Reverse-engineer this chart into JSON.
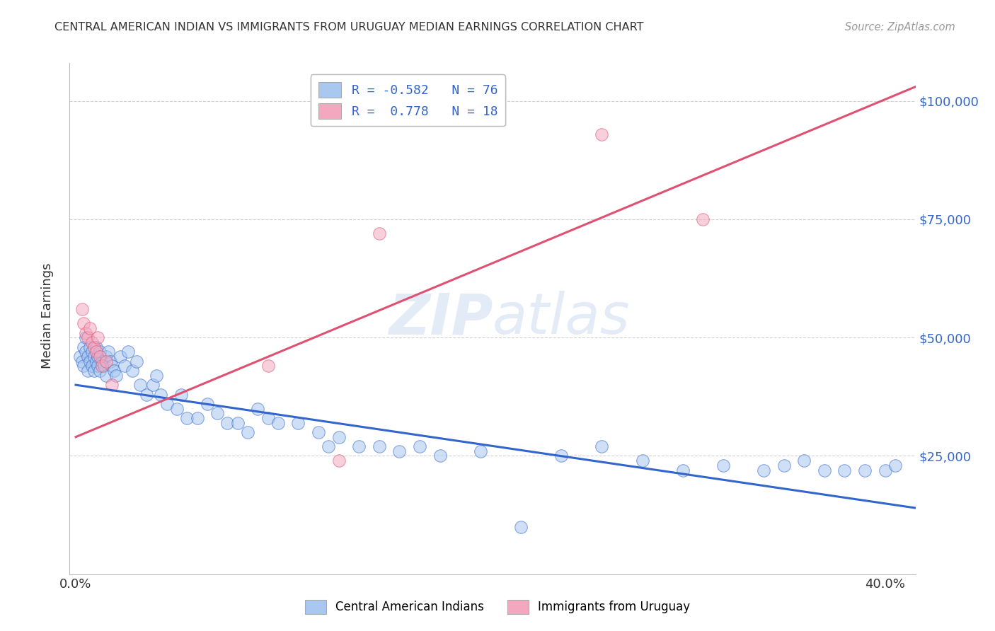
{
  "title": "CENTRAL AMERICAN INDIAN VS IMMIGRANTS FROM URUGUAY MEDIAN EARNINGS CORRELATION CHART",
  "source": "Source: ZipAtlas.com",
  "ylabel": "Median Earnings",
  "legend_label_blue": "Central American Indians",
  "legend_label_pink": "Immigrants from Uruguay",
  "legend_R_blue": "R = -0.582",
  "legend_N_blue": "N = 76",
  "legend_R_pink": "R =  0.778",
  "legend_N_pink": "N = 18",
  "yticks": [
    0,
    25000,
    50000,
    75000,
    100000
  ],
  "ytick_labels": [
    "",
    "$25,000",
    "$50,000",
    "$75,000",
    "$100,000"
  ],
  "xlim": [
    -0.003,
    0.415
  ],
  "ylim": [
    0,
    108000
  ],
  "blue_color": "#A8C8F0",
  "pink_color": "#F4A8C0",
  "blue_line_color": "#3366CC",
  "pink_line_color": "#E05070",
  "legend_text_color": "#3366CC",
  "watermark_color": "#c8d8f0",
  "blue_scatter_x": [
    0.002,
    0.003,
    0.004,
    0.004,
    0.005,
    0.005,
    0.006,
    0.006,
    0.007,
    0.007,
    0.008,
    0.008,
    0.009,
    0.009,
    0.01,
    0.01,
    0.011,
    0.011,
    0.012,
    0.012,
    0.013,
    0.014,
    0.015,
    0.015,
    0.016,
    0.017,
    0.018,
    0.019,
    0.02,
    0.022,
    0.024,
    0.026,
    0.028,
    0.03,
    0.032,
    0.035,
    0.038,
    0.04,
    0.042,
    0.045,
    0.05,
    0.052,
    0.055,
    0.06,
    0.065,
    0.07,
    0.075,
    0.08,
    0.085,
    0.09,
    0.095,
    0.1,
    0.11,
    0.12,
    0.125,
    0.13,
    0.14,
    0.15,
    0.16,
    0.17,
    0.18,
    0.2,
    0.22,
    0.24,
    0.26,
    0.28,
    0.3,
    0.32,
    0.34,
    0.35,
    0.36,
    0.37,
    0.38,
    0.39,
    0.4,
    0.405
  ],
  "blue_scatter_y": [
    46000,
    45000,
    48000,
    44000,
    47000,
    50000,
    46000,
    43000,
    48000,
    45000,
    47000,
    44000,
    46000,
    43000,
    48000,
    45000,
    46000,
    44000,
    47000,
    43000,
    45000,
    44000,
    46000,
    42000,
    47000,
    45000,
    44000,
    43000,
    42000,
    46000,
    44000,
    47000,
    43000,
    45000,
    40000,
    38000,
    40000,
    42000,
    38000,
    36000,
    35000,
    38000,
    33000,
    33000,
    36000,
    34000,
    32000,
    32000,
    30000,
    35000,
    33000,
    32000,
    32000,
    30000,
    27000,
    29000,
    27000,
    27000,
    26000,
    27000,
    25000,
    26000,
    10000,
    25000,
    27000,
    24000,
    22000,
    23000,
    22000,
    23000,
    24000,
    22000,
    22000,
    22000,
    22000,
    23000
  ],
  "pink_scatter_x": [
    0.003,
    0.004,
    0.005,
    0.006,
    0.007,
    0.008,
    0.009,
    0.01,
    0.011,
    0.012,
    0.013,
    0.015,
    0.018,
    0.095,
    0.13,
    0.15,
    0.26,
    0.31
  ],
  "pink_scatter_y": [
    56000,
    53000,
    51000,
    50000,
    52000,
    49000,
    48000,
    47000,
    50000,
    46000,
    44000,
    45000,
    40000,
    44000,
    24000,
    72000,
    93000,
    75000
  ],
  "blue_trend_x": [
    0.0,
    0.415
  ],
  "blue_trend_y": [
    40000,
    14000
  ],
  "pink_trend_x": [
    0.0,
    0.415
  ],
  "pink_trend_y": [
    29000,
    103000
  ]
}
